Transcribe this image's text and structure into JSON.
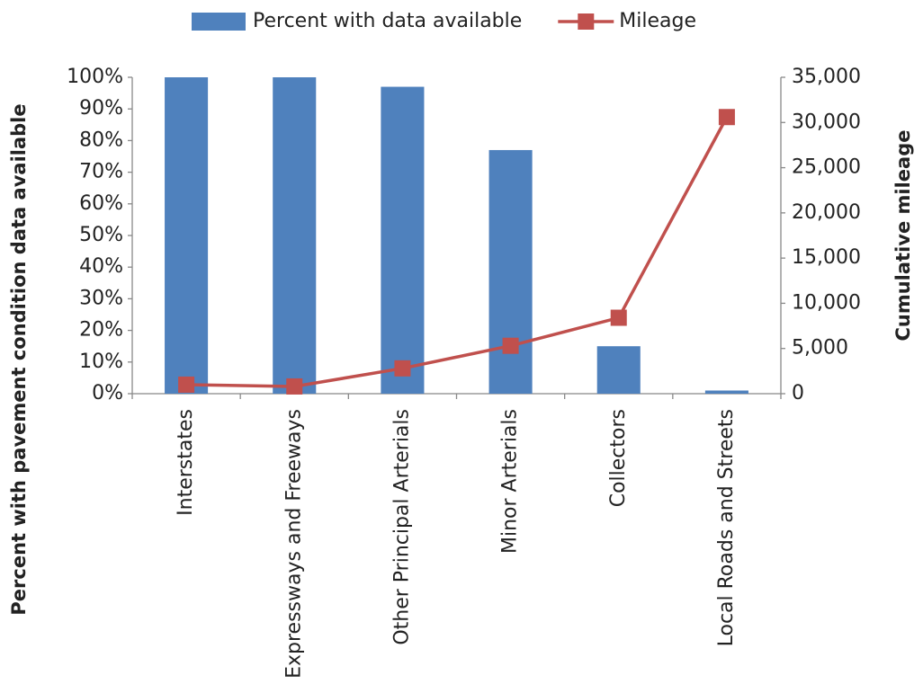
{
  "chart_data": {
    "type": "bar",
    "categories": [
      "Interstates",
      "Expressways and Freeways",
      "Other Principal Arterials",
      "Minor Arterials",
      "Collectors",
      "Local Roads and Streets"
    ],
    "series": [
      {
        "name": "Percent with data available",
        "color": "#4f81bd",
        "type": "bar",
        "values": [
          100,
          100,
          97,
          77,
          15,
          1
        ]
      },
      {
        "name": "Mileage",
        "color": "#c0504d",
        "type": "line",
        "axis": "y2",
        "values": [
          1000,
          800,
          2800,
          5300,
          8400,
          30600
        ]
      }
    ],
    "ylabel": "Percent with pavement condition data available",
    "y2label": "Cumulative mileage",
    "ylim": [
      0,
      100
    ],
    "yticks": [
      {
        "value": 0,
        "label": "0%"
      },
      {
        "value": 10,
        "label": "10%"
      },
      {
        "value": 20,
        "label": "20%"
      },
      {
        "value": 30,
        "label": "30%"
      },
      {
        "value": 40,
        "label": "40%"
      },
      {
        "value": 50,
        "label": "50%"
      },
      {
        "value": 60,
        "label": "60%"
      },
      {
        "value": 70,
        "label": "70%"
      },
      {
        "value": 80,
        "label": "80%"
      },
      {
        "value": 90,
        "label": "90%"
      },
      {
        "value": 100,
        "label": "100%"
      }
    ],
    "y2lim": [
      0,
      35000
    ],
    "y2ticks": [
      0,
      {
        "value": 5000,
        "label": "5,000"
      },
      {
        "value": 10000,
        "label": "10,000"
      },
      {
        "value": 15000,
        "label": "15,000"
      },
      {
        "value": 20000,
        "label": "20,000"
      },
      {
        "value": 25000,
        "label": "25,000"
      },
      {
        "value": 30000,
        "label": "30,000"
      },
      {
        "value": 35000,
        "label": "35,000"
      }
    ],
    "legend": "top",
    "grid": false
  }
}
